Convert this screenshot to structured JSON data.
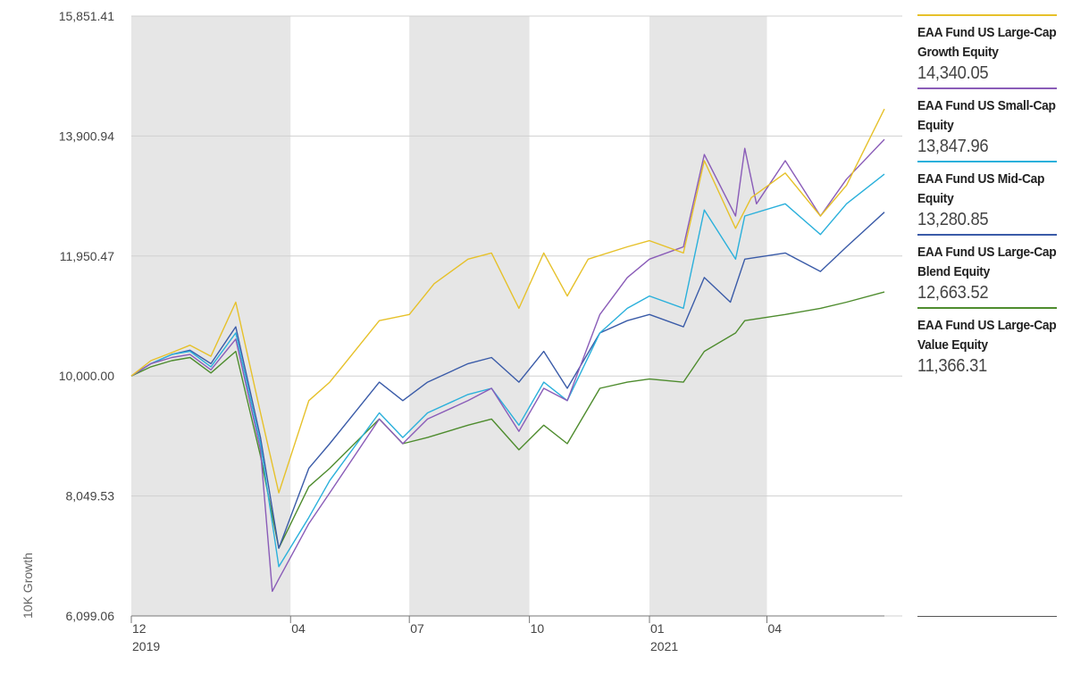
{
  "chart_data": {
    "type": "line",
    "title": "",
    "ylabel": "10K Growth",
    "xlabel": "",
    "ylim": [
      6099.06,
      15851.41
    ],
    "xlim": [
      "2019-12-01",
      "2021-06-30"
    ],
    "y_ticks": [
      "15,851.41",
      "13,900.94",
      "11,950.47",
      "10,000.00",
      "8,049.53",
      "6,099.06"
    ],
    "y_tick_values": [
      15851.41,
      13900.94,
      11950.47,
      10000.0,
      8049.53,
      6099.06
    ],
    "x_ticks": [
      {
        "date": "2019-12-01",
        "label": "12",
        "year": "2019"
      },
      {
        "date": "2020-04-01",
        "label": "04",
        "year": ""
      },
      {
        "date": "2020-07-01",
        "label": "07",
        "year": ""
      },
      {
        "date": "2020-10-01",
        "label": "10",
        "year": ""
      },
      {
        "date": "2021-01-01",
        "label": "01",
        "year": "2021"
      },
      {
        "date": "2021-04-01",
        "label": "04",
        "year": ""
      }
    ],
    "shaded_bands": [
      [
        "2019-12-01",
        "2020-04-01"
      ],
      [
        "2020-07-01",
        "2020-10-01"
      ],
      [
        "2021-01-01",
        "2021-04-01"
      ]
    ],
    "grid": true,
    "legend_position": "right",
    "series": [
      {
        "name": "EAA Fund US Large-Cap Growth Equity",
        "last_value": "14,340.05",
        "color": "#e6c12a",
        "points": [
          [
            "2019-12-01",
            10000
          ],
          [
            "2019-12-16",
            10250
          ],
          [
            "2020-01-01",
            10380
          ],
          [
            "2020-01-15",
            10500
          ],
          [
            "2020-01-31",
            10320
          ],
          [
            "2020-02-19",
            11200
          ],
          [
            "2020-03-09",
            9400
          ],
          [
            "2020-03-23",
            8100
          ],
          [
            "2020-04-15",
            9600
          ],
          [
            "2020-05-01",
            9900
          ],
          [
            "2020-06-08",
            10900
          ],
          [
            "2020-07-01",
            11000
          ],
          [
            "2020-07-20",
            11500
          ],
          [
            "2020-08-15",
            11900
          ],
          [
            "2020-09-02",
            12000
          ],
          [
            "2020-09-23",
            11100
          ],
          [
            "2020-10-12",
            12000
          ],
          [
            "2020-10-30",
            11300
          ],
          [
            "2020-11-15",
            11900
          ],
          [
            "2020-12-15",
            12100
          ],
          [
            "2021-01-01",
            12200
          ],
          [
            "2021-01-27",
            12000
          ],
          [
            "2021-02-12",
            13500
          ],
          [
            "2021-03-08",
            12400
          ],
          [
            "2021-03-20",
            12900
          ],
          [
            "2021-04-15",
            13300
          ],
          [
            "2021-05-12",
            12600
          ],
          [
            "2021-06-01",
            13100
          ],
          [
            "2021-06-30",
            14340.05
          ]
        ]
      },
      {
        "name": "EAA Fund US Small-Cap Equity",
        "last_value": "13,847.96",
        "color": "#8a5cb8",
        "points": [
          [
            "2019-12-01",
            10000
          ],
          [
            "2019-12-16",
            10200
          ],
          [
            "2020-01-01",
            10300
          ],
          [
            "2020-01-15",
            10350
          ],
          [
            "2020-01-31",
            10100
          ],
          [
            "2020-02-19",
            10600
          ],
          [
            "2020-03-09",
            8800
          ],
          [
            "2020-03-18",
            6500
          ],
          [
            "2020-03-23",
            6700
          ],
          [
            "2020-04-15",
            7600
          ],
          [
            "2020-05-01",
            8100
          ],
          [
            "2020-06-08",
            9300
          ],
          [
            "2020-06-26",
            8900
          ],
          [
            "2020-07-15",
            9300
          ],
          [
            "2020-08-15",
            9600
          ],
          [
            "2020-09-02",
            9800
          ],
          [
            "2020-09-23",
            9100
          ],
          [
            "2020-10-12",
            9800
          ],
          [
            "2020-10-30",
            9600
          ],
          [
            "2020-11-24",
            11000
          ],
          [
            "2020-12-15",
            11600
          ],
          [
            "2021-01-01",
            11900
          ],
          [
            "2021-01-27",
            12100
          ],
          [
            "2021-02-12",
            13600
          ],
          [
            "2021-03-08",
            12600
          ],
          [
            "2021-03-15",
            13700
          ],
          [
            "2021-03-24",
            12800
          ],
          [
            "2021-04-15",
            13500
          ],
          [
            "2021-05-12",
            12600
          ],
          [
            "2021-06-01",
            13200
          ],
          [
            "2021-06-30",
            13847.96
          ]
        ]
      },
      {
        "name": "EAA Fund US Mid-Cap Equity",
        "last_value": "13,280.85",
        "color": "#2ab0db",
        "points": [
          [
            "2019-12-01",
            10000
          ],
          [
            "2019-12-16",
            10200
          ],
          [
            "2020-01-01",
            10350
          ],
          [
            "2020-01-15",
            10400
          ],
          [
            "2020-01-31",
            10150
          ],
          [
            "2020-02-19",
            10700
          ],
          [
            "2020-03-09",
            8900
          ],
          [
            "2020-03-23",
            6900
          ],
          [
            "2020-04-15",
            7700
          ],
          [
            "2020-05-01",
            8300
          ],
          [
            "2020-06-08",
            9400
          ],
          [
            "2020-06-26",
            9000
          ],
          [
            "2020-07-15",
            9400
          ],
          [
            "2020-08-15",
            9700
          ],
          [
            "2020-09-02",
            9800
          ],
          [
            "2020-09-23",
            9200
          ],
          [
            "2020-10-12",
            9900
          ],
          [
            "2020-10-30",
            9600
          ],
          [
            "2020-11-24",
            10700
          ],
          [
            "2020-12-15",
            11100
          ],
          [
            "2021-01-01",
            11300
          ],
          [
            "2021-01-27",
            11100
          ],
          [
            "2021-02-12",
            12700
          ],
          [
            "2021-03-08",
            11900
          ],
          [
            "2021-03-15",
            12600
          ],
          [
            "2021-04-15",
            12800
          ],
          [
            "2021-05-12",
            12300
          ],
          [
            "2021-06-01",
            12800
          ],
          [
            "2021-06-30",
            13280.85
          ]
        ]
      },
      {
        "name": "EAA Fund US Large-Cap Blend Equity",
        "last_value": "12,663.52",
        "color": "#3a5ba8",
        "points": [
          [
            "2019-12-01",
            10000
          ],
          [
            "2019-12-16",
            10200
          ],
          [
            "2020-01-01",
            10350
          ],
          [
            "2020-01-15",
            10420
          ],
          [
            "2020-01-31",
            10200
          ],
          [
            "2020-02-19",
            10800
          ],
          [
            "2020-03-09",
            9000
          ],
          [
            "2020-03-23",
            7200
          ],
          [
            "2020-04-15",
            8500
          ],
          [
            "2020-05-01",
            8900
          ],
          [
            "2020-06-08",
            9900
          ],
          [
            "2020-06-26",
            9600
          ],
          [
            "2020-07-15",
            9900
          ],
          [
            "2020-08-15",
            10200
          ],
          [
            "2020-09-02",
            10300
          ],
          [
            "2020-09-23",
            9900
          ],
          [
            "2020-10-12",
            10400
          ],
          [
            "2020-10-30",
            9800
          ],
          [
            "2020-11-24",
            10700
          ],
          [
            "2020-12-15",
            10900
          ],
          [
            "2021-01-01",
            11000
          ],
          [
            "2021-01-27",
            10800
          ],
          [
            "2021-02-12",
            11600
          ],
          [
            "2021-03-04",
            11200
          ],
          [
            "2021-03-15",
            11900
          ],
          [
            "2021-04-15",
            12000
          ],
          [
            "2021-05-12",
            11700
          ],
          [
            "2021-06-01",
            12100
          ],
          [
            "2021-06-30",
            12663.52
          ]
        ]
      },
      {
        "name": "EAA Fund US Large-Cap Value Equity",
        "last_value": "11,366.31",
        "color": "#4e8c2e",
        "points": [
          [
            "2019-12-01",
            10000
          ],
          [
            "2019-12-16",
            10150
          ],
          [
            "2020-01-01",
            10250
          ],
          [
            "2020-01-15",
            10300
          ],
          [
            "2020-01-31",
            10050
          ],
          [
            "2020-02-19",
            10400
          ],
          [
            "2020-03-09",
            8700
          ],
          [
            "2020-03-23",
            7200
          ],
          [
            "2020-04-15",
            8200
          ],
          [
            "2020-05-01",
            8500
          ],
          [
            "2020-06-08",
            9300
          ],
          [
            "2020-06-26",
            8900
          ],
          [
            "2020-07-15",
            9000
          ],
          [
            "2020-08-15",
            9200
          ],
          [
            "2020-09-02",
            9300
          ],
          [
            "2020-09-23",
            8800
          ],
          [
            "2020-10-12",
            9200
          ],
          [
            "2020-10-30",
            8900
          ],
          [
            "2020-11-24",
            9800
          ],
          [
            "2020-12-15",
            9900
          ],
          [
            "2021-01-01",
            9950
          ],
          [
            "2021-01-27",
            9900
          ],
          [
            "2021-02-12",
            10400
          ],
          [
            "2021-03-08",
            10700
          ],
          [
            "2021-03-15",
            10900
          ],
          [
            "2021-04-15",
            11000
          ],
          [
            "2021-05-12",
            11100
          ],
          [
            "2021-06-01",
            11200
          ],
          [
            "2021-06-30",
            11366.31
          ]
        ]
      }
    ]
  },
  "legend": {
    "items": [
      {
        "name": "EAA Fund US Large-Cap Growth Equity",
        "value": "14,340.05",
        "color": "#e6c12a"
      },
      {
        "name": "EAA Fund US Small-Cap Equity",
        "value": "13,847.96",
        "color": "#8a5cb8"
      },
      {
        "name": "EAA Fund US Mid-Cap Equity",
        "value": "13,280.85",
        "color": "#2ab0db"
      },
      {
        "name": "EAA Fund US Large-Cap Blend Equity",
        "value": "12,663.52",
        "color": "#3a5ba8"
      },
      {
        "name": "EAA Fund US Large-Cap Value Equity",
        "value": "11,366.31",
        "color": "#4e8c2e"
      }
    ]
  },
  "colors": {
    "band": "#e6e6e6",
    "grid": "#d0d0d0",
    "axis": "#777777"
  }
}
